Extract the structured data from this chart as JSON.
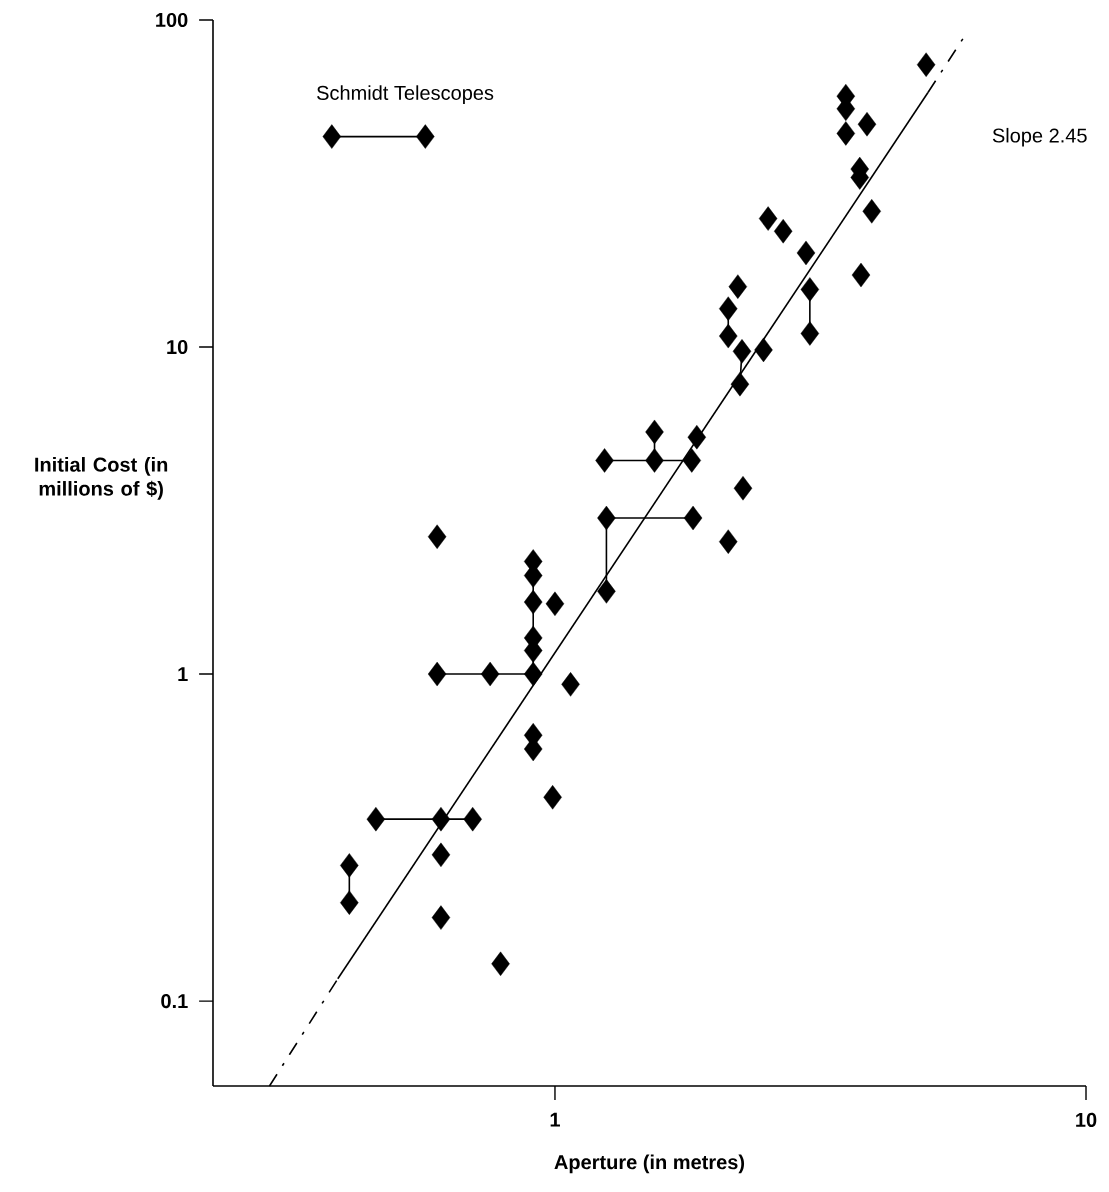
{
  "chart_data": {
    "type": "scatter",
    "xlabel": "Aperture (in metres)",
    "ylabel": "Initial Cost (in millions of $)",
    "log": "xy",
    "xlim": [
      0.227,
      10
    ],
    "ylim": [
      0.055,
      100
    ],
    "xticks": [
      1,
      10
    ],
    "yticks": [
      0.1,
      1,
      10,
      100
    ],
    "series": [
      {
        "color": "#000000",
        "marker": "diamond",
        "x": [
          0.38,
          0.57,
          5.0,
          3.53,
          3.53,
          3.53,
          3.87,
          3.75,
          3.75,
          3.95,
          2.52,
          2.69,
          2.97,
          3.77,
          2.21,
          3.02,
          3.02,
          2.12,
          2.12,
          2.25,
          2.47,
          2.23,
          1.54,
          1.54,
          1.24,
          1.81,
          1.85,
          2.26,
          1.25,
          1.82,
          1.25,
          2.12,
          1.0,
          1.07,
          0.6,
          0.91,
          0.91,
          0.91,
          0.91,
          0.91,
          0.91,
          0.755,
          0.6,
          0.91,
          0.91,
          0.99,
          0.46,
          0.61,
          0.7,
          0.61,
          0.41,
          0.41,
          0.61,
          0.79
        ],
        "values": [
          44,
          44,
          73,
          58.5,
          53.5,
          45,
          48,
          35,
          33,
          26,
          24.7,
          22.6,
          19.4,
          16.6,
          15.3,
          15.0,
          11.0,
          13.1,
          10.8,
          9.7,
          9.8,
          7.7,
          5.5,
          4.5,
          4.5,
          4.5,
          5.3,
          3.7,
          3.0,
          3.0,
          1.79,
          2.54,
          1.64,
          0.93,
          2.63,
          2.21,
          2.0,
          1.66,
          1.29,
          1.18,
          1.0,
          1.0,
          1.0,
          0.65,
          0.59,
          0.42,
          0.36,
          0.36,
          0.36,
          0.28,
          0.26,
          0.2,
          0.18,
          0.13
        ]
      },
      {
        "type": "line",
        "color": "#000000",
        "marker": "none",
        "line_style": "solid",
        "x": [
          0.38,
          0.57
        ],
        "values": [
          44,
          44
        ]
      },
      {
        "type": "line",
        "color": "#000000",
        "marker": "none",
        "line_style": "solid",
        "x": [
          2.12,
          2.12
        ],
        "values": [
          13.1,
          10.8
        ]
      },
      {
        "type": "line",
        "color": "#000000",
        "marker": "none",
        "line_style": "solid",
        "x": [
          2.25,
          2.23
        ],
        "values": [
          9.7,
          7.7
        ]
      },
      {
        "type": "line",
        "color": "#000000",
        "marker": "none",
        "line_style": "solid",
        "x": [
          3.02,
          3.02
        ],
        "values": [
          15.0,
          11.0
        ]
      },
      {
        "type": "line",
        "color": "#000000",
        "marker": "none",
        "line_style": "solid",
        "x": [
          1.54,
          1.54
        ],
        "values": [
          5.5,
          4.5
        ]
      },
      {
        "type": "line",
        "color": "#000000",
        "marker": "none",
        "line_style": "solid",
        "x": [
          1.24,
          1.81
        ],
        "values": [
          4.5,
          4.5
        ]
      },
      {
        "type": "line",
        "color": "#000000",
        "marker": "none",
        "line_style": "solid",
        "x": [
          1.25,
          1.82
        ],
        "values": [
          3.0,
          3.0
        ]
      },
      {
        "type": "line",
        "color": "#000000",
        "marker": "none",
        "line_style": "solid",
        "x": [
          1.25,
          1.25
        ],
        "values": [
          3.0,
          1.79
        ]
      },
      {
        "type": "line",
        "color": "#000000",
        "marker": "none",
        "line_style": "solid",
        "x": [
          0.91,
          0.91
        ],
        "values": [
          2.21,
          1.0
        ]
      },
      {
        "type": "line",
        "color": "#000000",
        "marker": "none",
        "line_style": "solid",
        "x": [
          0.6,
          0.91
        ],
        "values": [
          1.0,
          1.0
        ]
      },
      {
        "type": "line",
        "color": "#000000",
        "marker": "none",
        "line_style": "solid",
        "x": [
          0.46,
          0.7
        ],
        "values": [
          0.36,
          0.36
        ]
      },
      {
        "type": "line",
        "color": "#000000",
        "marker": "none",
        "line_style": "solid",
        "x": [
          0.41,
          0.41
        ],
        "values": [
          0.26,
          0.2
        ]
      },
      {
        "type": "line",
        "color": "#000000",
        "marker": "none",
        "line_style": "solid",
        "x": [
          0.39,
          5.04
        ],
        "values": [
          0.117,
          60
        ]
      },
      {
        "type": "line",
        "color": "#000000",
        "marker": "none",
        "line_style": "dashed",
        "x": [
          0.29,
          0.39
        ],
        "values": [
          0.055,
          0.117
        ]
      },
      {
        "type": "line",
        "color": "#000000",
        "marker": "none",
        "line_style": "dashed",
        "x": [
          5.04,
          5.9
        ],
        "values": [
          60,
          89
        ]
      }
    ],
    "annotations": [
      "Schmidt Telescopes",
      "Slope 2.45"
    ]
  }
}
